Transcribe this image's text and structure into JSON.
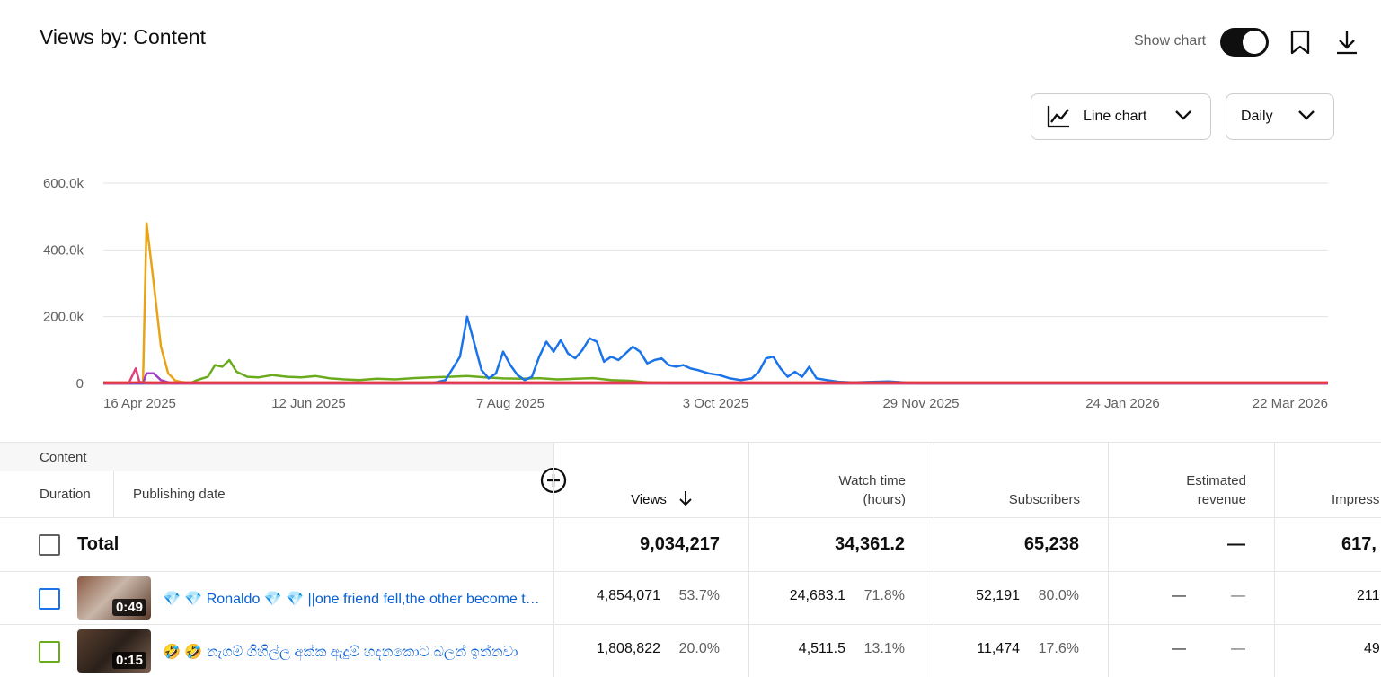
{
  "header": {
    "title": "Views by: Content",
    "show_chart_label": "Show chart",
    "chart_type_label": "Line chart",
    "interval_label": "Daily"
  },
  "chart_data": {
    "type": "line",
    "title": "",
    "x_ticks": [
      "16 Apr 2025",
      "12 Jun 2025",
      "7 Aug 2025",
      "3 Oct 2025",
      "29 Nov 2025",
      "24 Jan 2026",
      "22 Mar 2026"
    ],
    "y_ticks": [
      "0",
      "200.0k",
      "400.0k",
      "600.0k"
    ],
    "ylim": [
      0,
      600000
    ],
    "xlim": [
      "2025-04-16",
      "2026-03-22"
    ],
    "grid": true,
    "colors": {
      "blue": "#1a73e8",
      "orange": "#e8a317",
      "green": "#6aab1e",
      "purple": "#a03ec4",
      "pink": "#e0407a",
      "red": "#e53935"
    },
    "series": [
      {
        "color": "#e8a317",
        "points": [
          [
            "2025-04-16",
            0
          ],
          [
            "2025-04-27",
            0
          ],
          [
            "2025-04-28",
            480000
          ],
          [
            "2025-04-30",
            300000
          ],
          [
            "2025-05-02",
            110000
          ],
          [
            "2025-05-04",
            30000
          ],
          [
            "2025-05-06",
            8000
          ],
          [
            "2025-05-10",
            0
          ],
          [
            "2026-03-22",
            0
          ]
        ]
      },
      {
        "color": "#6aab1e",
        "points": [
          [
            "2025-04-16",
            0
          ],
          [
            "2025-05-10",
            0
          ],
          [
            "2025-05-12",
            10000
          ],
          [
            "2025-05-15",
            20000
          ],
          [
            "2025-05-17",
            55000
          ],
          [
            "2025-05-19",
            50000
          ],
          [
            "2025-05-21",
            70000
          ],
          [
            "2025-05-23",
            35000
          ],
          [
            "2025-05-26",
            20000
          ],
          [
            "2025-05-29",
            18000
          ],
          [
            "2025-06-02",
            25000
          ],
          [
            "2025-06-06",
            20000
          ],
          [
            "2025-06-10",
            18000
          ],
          [
            "2025-06-14",
            22000
          ],
          [
            "2025-06-18",
            15000
          ],
          [
            "2025-06-22",
            12000
          ],
          [
            "2025-06-26",
            10000
          ],
          [
            "2025-07-01",
            14000
          ],
          [
            "2025-07-06",
            12000
          ],
          [
            "2025-07-11",
            16000
          ],
          [
            "2025-07-16",
            18000
          ],
          [
            "2025-07-21",
            20000
          ],
          [
            "2025-07-26",
            22000
          ],
          [
            "2025-07-31",
            18000
          ],
          [
            "2025-08-05",
            15000
          ],
          [
            "2025-08-10",
            14000
          ],
          [
            "2025-08-15",
            16000
          ],
          [
            "2025-08-20",
            12000
          ],
          [
            "2025-08-25",
            14000
          ],
          [
            "2025-08-30",
            16000
          ],
          [
            "2025-09-04",
            10000
          ],
          [
            "2025-09-09",
            8000
          ],
          [
            "2025-09-14",
            3000
          ],
          [
            "2025-09-19",
            0
          ],
          [
            "2026-03-22",
            0
          ]
        ]
      },
      {
        "color": "#1a73e8",
        "points": [
          [
            "2025-04-16",
            0
          ],
          [
            "2025-07-16",
            0
          ],
          [
            "2025-07-20",
            10000
          ],
          [
            "2025-07-24",
            80000
          ],
          [
            "2025-07-26",
            200000
          ],
          [
            "2025-07-28",
            120000
          ],
          [
            "2025-07-30",
            40000
          ],
          [
            "2025-08-01",
            15000
          ],
          [
            "2025-08-03",
            30000
          ],
          [
            "2025-08-05",
            95000
          ],
          [
            "2025-08-07",
            55000
          ],
          [
            "2025-08-09",
            25000
          ],
          [
            "2025-08-11",
            10000
          ],
          [
            "2025-08-13",
            20000
          ],
          [
            "2025-08-15",
            80000
          ],
          [
            "2025-08-17",
            125000
          ],
          [
            "2025-08-19",
            95000
          ],
          [
            "2025-08-21",
            130000
          ],
          [
            "2025-08-23",
            90000
          ],
          [
            "2025-08-25",
            75000
          ],
          [
            "2025-08-27",
            100000
          ],
          [
            "2025-08-29",
            135000
          ],
          [
            "2025-08-31",
            125000
          ],
          [
            "2025-09-02",
            65000
          ],
          [
            "2025-09-04",
            80000
          ],
          [
            "2025-09-06",
            70000
          ],
          [
            "2025-09-08",
            90000
          ],
          [
            "2025-09-10",
            110000
          ],
          [
            "2025-09-12",
            95000
          ],
          [
            "2025-09-14",
            60000
          ],
          [
            "2025-09-16",
            70000
          ],
          [
            "2025-09-18",
            75000
          ],
          [
            "2025-09-20",
            55000
          ],
          [
            "2025-09-22",
            50000
          ],
          [
            "2025-09-24",
            55000
          ],
          [
            "2025-09-26",
            45000
          ],
          [
            "2025-09-28",
            40000
          ],
          [
            "2025-10-01",
            30000
          ],
          [
            "2025-10-04",
            25000
          ],
          [
            "2025-10-07",
            15000
          ],
          [
            "2025-10-10",
            10000
          ],
          [
            "2025-10-13",
            15000
          ],
          [
            "2025-10-15",
            35000
          ],
          [
            "2025-10-17",
            75000
          ],
          [
            "2025-10-19",
            80000
          ],
          [
            "2025-10-21",
            45000
          ],
          [
            "2025-10-23",
            20000
          ],
          [
            "2025-10-25",
            35000
          ],
          [
            "2025-10-27",
            20000
          ],
          [
            "2025-10-29",
            50000
          ],
          [
            "2025-10-31",
            15000
          ],
          [
            "2025-11-03",
            10000
          ],
          [
            "2025-11-06",
            5000
          ],
          [
            "2025-11-10",
            3000
          ],
          [
            "2025-11-20",
            6000
          ],
          [
            "2025-11-23",
            4000
          ],
          [
            "2025-11-28",
            0
          ],
          [
            "2026-03-22",
            0
          ]
        ]
      },
      {
        "color": "#a03ec4",
        "points": [
          [
            "2025-04-16",
            0
          ],
          [
            "2025-04-27",
            0
          ],
          [
            "2025-04-28",
            30000
          ],
          [
            "2025-04-30",
            30000
          ],
          [
            "2025-05-02",
            10000
          ],
          [
            "2025-05-05",
            0
          ],
          [
            "2026-03-22",
            0
          ]
        ]
      },
      {
        "color": "#e0407a",
        "points": [
          [
            "2025-04-16",
            0
          ],
          [
            "2025-04-23",
            0
          ],
          [
            "2025-04-25",
            45000
          ],
          [
            "2025-04-26",
            5000
          ],
          [
            "2025-04-28",
            0
          ],
          [
            "2026-03-22",
            0
          ]
        ]
      },
      {
        "color": "#e53935",
        "points": [
          [
            "2025-04-16",
            3000
          ],
          [
            "2026-03-22",
            3000
          ]
        ]
      }
    ]
  },
  "table": {
    "content_label": "Content",
    "duration_label": "Duration",
    "publishing_date_label": "Publishing date",
    "columns": {
      "views": "Views",
      "watch_time": "Watch time\n(hours)",
      "subscribers": "Subscribers",
      "estimated_revenue": "Estimated\nrevenue",
      "impressions": "Impress"
    },
    "total": {
      "label": "Total",
      "views": "9,034,217",
      "watch_time": "34,361.2",
      "subscribers": "65,238",
      "revenue": "—",
      "impressions": "617,"
    },
    "rows": [
      {
        "checkbox_color": "#1a73e8",
        "duration": "0:49",
        "title": "💎 💎 Ronaldo 💎 💎 ||one friend fell,the other become the real hero",
        "views": "4,854,071",
        "views_pct": "53.7%",
        "watch_time": "24,683.1",
        "watch_pct": "71.8%",
        "subscribers": "52,191",
        "subs_pct": "80.0%",
        "revenue": "—",
        "revenue_pct": "—",
        "impressions": "211"
      },
      {
        "checkbox_color": "#6aab1e",
        "duration": "0:15",
        "title": "🤣 🤣 නැගම් ගිහිල්ල අක්ක ඇදුම් හදනකොට බලන් ඉන්නවා",
        "views": "1,808,822",
        "views_pct": "20.0%",
        "watch_time": "4,511.5",
        "watch_pct": "13.1%",
        "subscribers": "11,474",
        "subs_pct": "17.6%",
        "revenue": "—",
        "revenue_pct": "—",
        "impressions": "49"
      }
    ]
  }
}
